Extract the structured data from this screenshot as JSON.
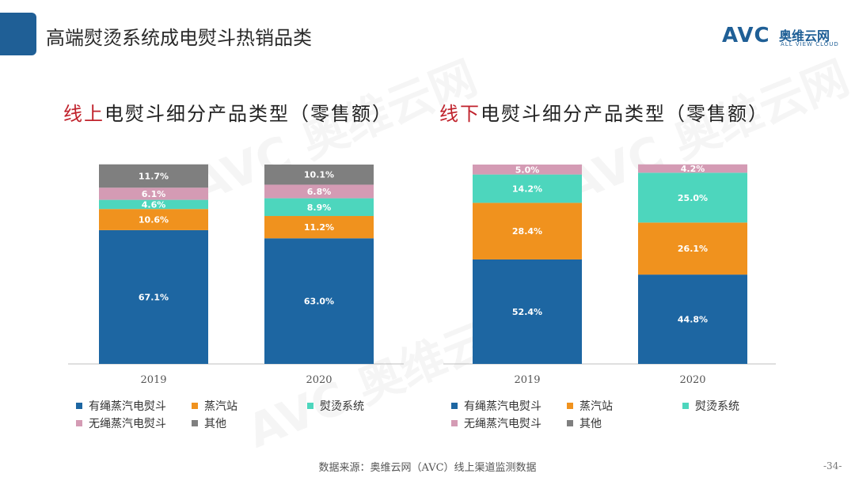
{
  "header": {
    "title": "高端熨烫系统成电熨斗热销品类"
  },
  "logo": {
    "mark": "AVC",
    "name_cn": "奥维云网",
    "name_en": "ALL VIEW CLOUD"
  },
  "watermark": {
    "mark": "AVC",
    "name_cn": "奥维云网",
    "name_en": "ALL VIEW CLOUD"
  },
  "colors": {
    "corded_steam": "#1d66a2",
    "steam_station": "#f0921e",
    "ironing_system": "#4dd6bd",
    "cordless_steam": "#d49bb4",
    "other": "#7f7f7f",
    "accent_red": "#c0222c",
    "header_blue": "#1f5f96"
  },
  "legend": [
    {
      "key": "corded_steam",
      "label": "有绳蒸汽电熨斗"
    },
    {
      "key": "steam_station",
      "label": "蒸汽站"
    },
    {
      "key": "ironing_system",
      "label": "熨烫系统"
    },
    {
      "key": "cordless_steam",
      "label": "无绳蒸汽电熨斗"
    },
    {
      "key": "other",
      "label": "其他"
    }
  ],
  "chart_data": [
    {
      "type": "bar",
      "stacked": true,
      "title_accent": "线上",
      "title_rest": "电熨斗细分产品类型（零售额）",
      "categories": [
        "2019",
        "2020"
      ],
      "series": [
        {
          "name": "有绳蒸汽电熨斗",
          "key": "corded_steam",
          "values": [
            67.1,
            63.0
          ],
          "labels": [
            "67.1%",
            "63.0%"
          ]
        },
        {
          "name": "蒸汽站",
          "key": "steam_station",
          "values": [
            10.6,
            11.2
          ],
          "labels": [
            "10.6%",
            "11.2%"
          ]
        },
        {
          "name": "熨烫系统",
          "key": "ironing_system",
          "values": [
            4.6,
            8.9
          ],
          "labels": [
            "4.6%",
            "8.9%"
          ]
        },
        {
          "name": "无绳蒸汽电熨斗",
          "key": "cordless_steam",
          "values": [
            6.1,
            6.8
          ],
          "labels": [
            "6.1%",
            "6.8%"
          ]
        },
        {
          "name": "其他",
          "key": "other",
          "values": [
            11.7,
            10.1
          ],
          "labels": [
            "11.7%",
            "10.1%"
          ]
        }
      ],
      "ylim": [
        0,
        100
      ],
      "grid": false,
      "legend_position": "bottom"
    },
    {
      "type": "bar",
      "stacked": true,
      "title_accent": "线下",
      "title_rest": "电熨斗细分产品类型（零售额）",
      "categories": [
        "2019",
        "2020"
      ],
      "series": [
        {
          "name": "有绳蒸汽电熨斗",
          "key": "corded_steam",
          "values": [
            52.4,
            44.8
          ],
          "labels": [
            "52.4%",
            "44.8%"
          ]
        },
        {
          "name": "蒸汽站",
          "key": "steam_station",
          "values": [
            28.4,
            26.1
          ],
          "labels": [
            "28.4%",
            "26.1%"
          ]
        },
        {
          "name": "熨烫系统",
          "key": "ironing_system",
          "values": [
            14.2,
            25.0
          ],
          "labels": [
            "14.2%",
            "25.0%"
          ]
        },
        {
          "name": "无绳蒸汽电熨斗",
          "key": "cordless_steam",
          "values": [
            5.0,
            4.2
          ],
          "labels": [
            "5.0%",
            "4.2%"
          ]
        },
        {
          "name": "其他",
          "key": "other",
          "values": [
            0,
            0
          ],
          "labels": [
            "",
            ""
          ]
        }
      ],
      "ylim": [
        0,
        100
      ],
      "grid": false,
      "legend_position": "bottom"
    }
  ],
  "footer": {
    "source": "数据来源：奥维云网（AVC）线上渠道监测数据",
    "page": "-34-"
  }
}
